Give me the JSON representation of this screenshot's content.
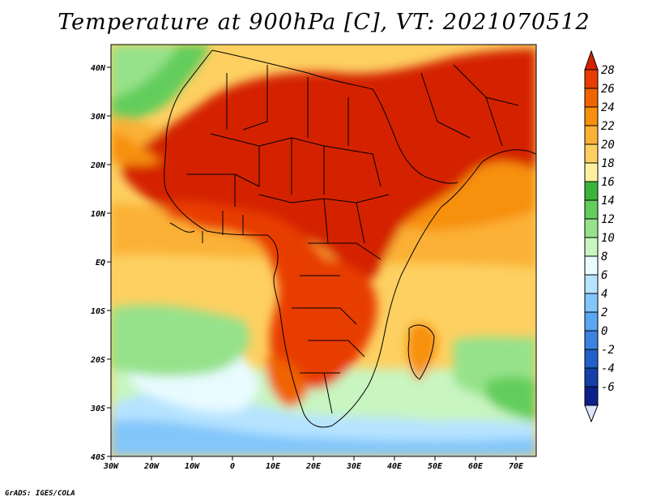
{
  "title": "Temperature at 900hPa [C], VT: 2021070512",
  "credit": "GrADS: IGES/COLA",
  "map": {
    "lon_labels": [
      "30W",
      "20W",
      "10W",
      "0",
      "10E",
      "20E",
      "30E",
      "40E",
      "50E",
      "60E",
      "70E"
    ],
    "lat_labels": [
      "40N",
      "30N",
      "20N",
      "10N",
      "EQ",
      "10S",
      "20S",
      "30S",
      "40S"
    ]
  },
  "colorbar": {
    "labels": [
      "28",
      "26",
      "24",
      "22",
      "20",
      "18",
      "16",
      "14",
      "12",
      "10",
      "8",
      "6",
      "4",
      "2",
      "0",
      "-2",
      "-4",
      "-6"
    ],
    "colors": [
      "#d42100",
      "#e83d00",
      "#f06400",
      "#f7900c",
      "#fbb136",
      "#fdd061",
      "#fff0a0",
      "#3ab53a",
      "#63cd5c",
      "#96e28a",
      "#c8f5c0",
      "#e8fbff",
      "#b6e3ff",
      "#82c6fa",
      "#5aa6f0",
      "#3c82e0",
      "#2060c8",
      "#1540a8",
      "#0c208a",
      "#dfe4ff"
    ]
  },
  "legend_title": ""
}
